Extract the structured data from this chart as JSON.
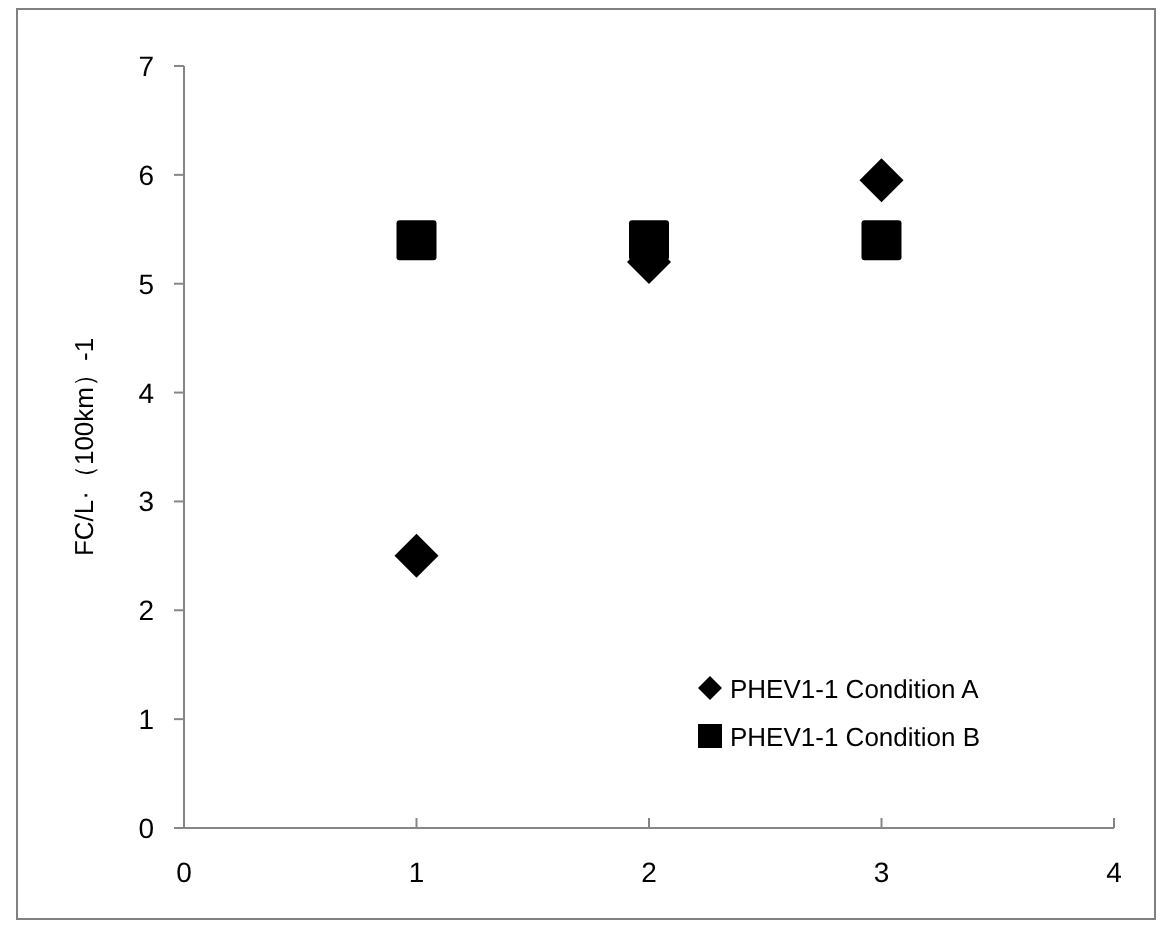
{
  "chart_data": {
    "type": "scatter",
    "ylabel": "FC/L·（100km）-1",
    "xlim": [
      0,
      4
    ],
    "xticks": [
      0,
      1,
      2,
      3,
      4
    ],
    "ylim": [
      0,
      7
    ],
    "yticks": [
      0,
      1,
      2,
      3,
      4,
      5,
      6,
      7
    ],
    "grid": false,
    "legend": "bottom right",
    "series": [
      {
        "name": "PHEV1-1 Condition A",
        "color": "#000000",
        "marker": "diamond",
        "x": [
          1,
          2,
          3
        ],
        "values": [
          2.5,
          5.2,
          5.95
        ]
      },
      {
        "name": "PHEV1-1 Condition B",
        "color": "#000000",
        "marker": "square",
        "x": [
          1,
          2,
          3
        ],
        "values": [
          5.4,
          5.4,
          5.4
        ]
      }
    ]
  }
}
